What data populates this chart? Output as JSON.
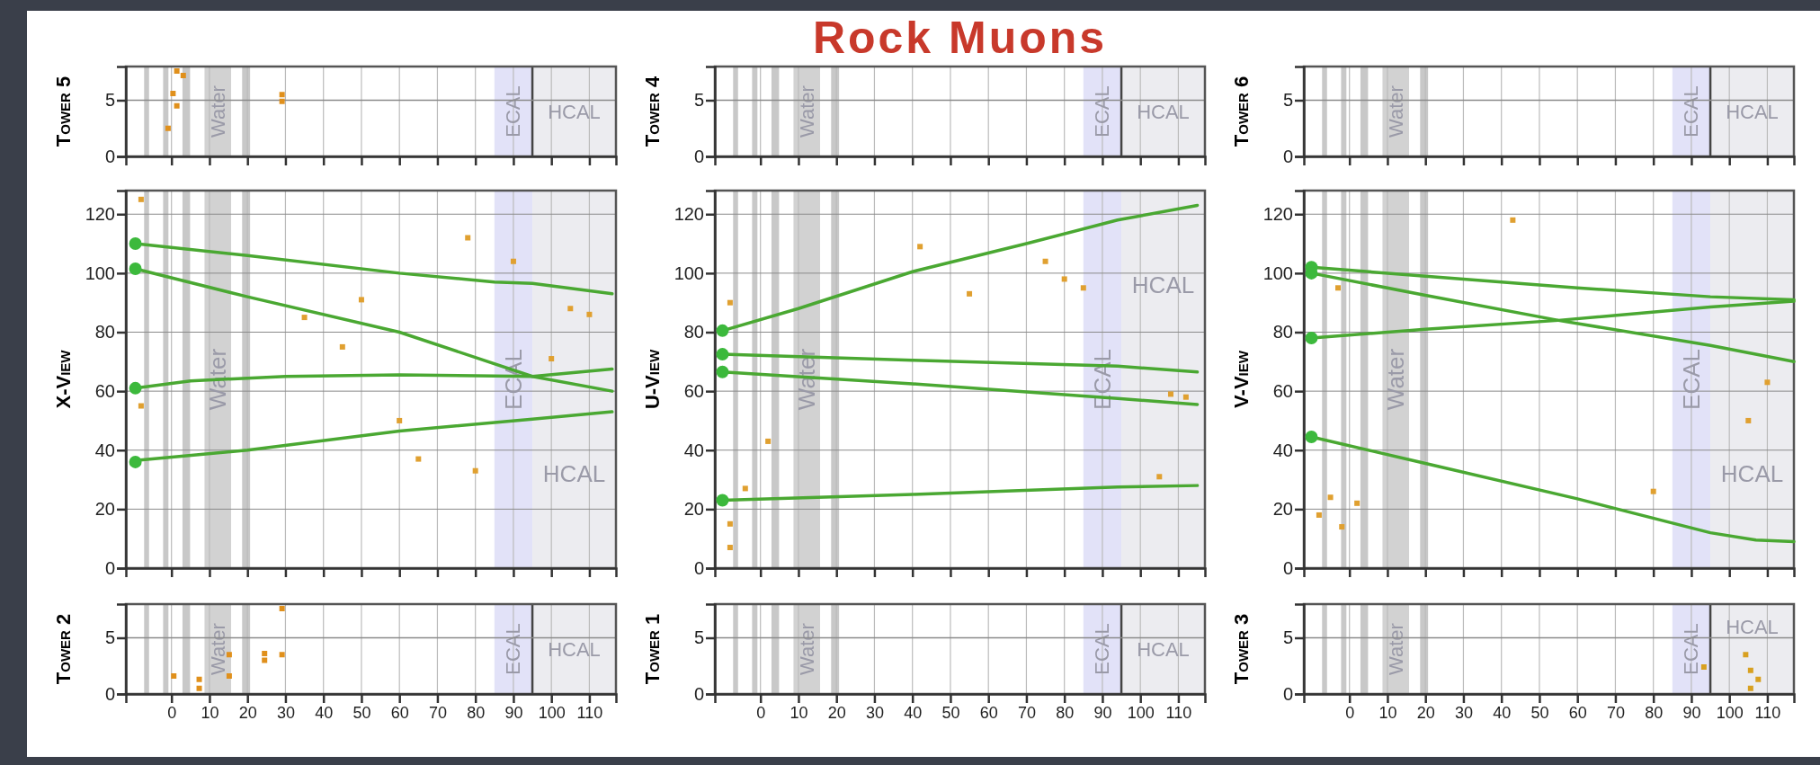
{
  "chart_data": [
    {
      "type": "scatter",
      "ylabel": "Tower 5",
      "xlim": [
        -12,
        117
      ],
      "ylim": [
        0,
        8
      ],
      "xticks": [
        0,
        10,
        20,
        30,
        40,
        50,
        60,
        70,
        80,
        90,
        100,
        110
      ],
      "yticks": [
        0,
        5
      ],
      "tick_labels": "y",
      "grid": "x",
      "ref_lines": [
        {
          "axis": "x",
          "value": 95,
          "color": "#444444"
        },
        {
          "axis": "y",
          "value": 5,
          "color": "#8a8a8a"
        }
      ],
      "bands": [
        {
          "axis": "x",
          "from": -7.2,
          "to": -5.9,
          "color": "#c8c8c8"
        },
        {
          "axis": "x",
          "from": -2.2,
          "to": -0.8,
          "color": "#c8c8c8"
        },
        {
          "axis": "x",
          "from": 2.9,
          "to": 4.9,
          "color": "#c8c8c8"
        },
        {
          "axis": "x",
          "from": 18.6,
          "to": 20.7,
          "color": "#c8c8c8"
        },
        {
          "axis": "x",
          "from": 8.7,
          "to": 15.7,
          "label": "Water",
          "color": "#d2d2d2"
        },
        {
          "axis": "x",
          "from": 85,
          "to": 95,
          "label": "ECAL",
          "color": "#e2e2f8"
        },
        {
          "axis": "x",
          "from": 95,
          "to": 117,
          "label": "HCAL",
          "color": "#ececf0"
        }
      ],
      "series": [
        {
          "color": "#e0901c",
          "marker": "square",
          "x": [
            -0.9,
            0.4,
            1.4,
            1.4,
            3.1,
            29.1,
            29.1
          ],
          "values": [
            2.5,
            5.6,
            4.5,
            7.6,
            7.2,
            4.9,
            5.5
          ]
        }
      ]
    },
    {
      "type": "scatter",
      "title": "Rock Muons",
      "ylabel": "Tower 4",
      "xlim": [
        -12,
        117
      ],
      "ylim": [
        0,
        8
      ],
      "xticks": [
        0,
        10,
        20,
        30,
        40,
        50,
        60,
        70,
        80,
        90,
        100,
        110
      ],
      "yticks": [
        0,
        5
      ],
      "tick_labels": "y",
      "grid": "x",
      "bands": [
        {
          "axis": "x",
          "from": -7.2,
          "to": -5.9,
          "color": "#c8c8c8"
        },
        {
          "axis": "x",
          "from": -2.2,
          "to": -0.8,
          "color": "#c8c8c8"
        },
        {
          "axis": "x",
          "from": 2.9,
          "to": 4.9,
          "color": "#c8c8c8"
        },
        {
          "axis": "x",
          "from": 18.6,
          "to": 20.7,
          "color": "#c8c8c8"
        },
        {
          "axis": "x",
          "from": 8.7,
          "to": 15.7,
          "label": "Water",
          "color": "#d2d2d2"
        },
        {
          "axis": "x",
          "from": 85,
          "to": 95,
          "label": "ECAL",
          "color": "#e2e2f8"
        },
        {
          "axis": "x",
          "from": 95,
          "to": 117,
          "label": "HCAL",
          "color": "#ececf0"
        }
      ],
      "ref_lines": [
        {
          "axis": "x",
          "value": 95,
          "color": "#444444"
        },
        {
          "axis": "y",
          "value": 5,
          "color": "#8a8a8a"
        }
      ]
    },
    {
      "type": "scatter",
      "ylabel": "Tower 6",
      "xlim": [
        -12,
        117
      ],
      "ylim": [
        0,
        8
      ],
      "xticks": [
        0,
        10,
        20,
        30,
        40,
        50,
        60,
        70,
        80,
        90,
        100,
        110
      ],
      "yticks": [
        0,
        5
      ],
      "tick_labels": "y",
      "grid": "x",
      "bands": [
        {
          "axis": "x",
          "from": -7.2,
          "to": -5.9,
          "color": "#c8c8c8"
        },
        {
          "axis": "x",
          "from": -2.2,
          "to": -0.8,
          "color": "#c8c8c8"
        },
        {
          "axis": "x",
          "from": 2.9,
          "to": 4.9,
          "color": "#c8c8c8"
        },
        {
          "axis": "x",
          "from": 18.6,
          "to": 20.7,
          "color": "#c8c8c8"
        },
        {
          "axis": "x",
          "from": 8.7,
          "to": 15.7,
          "label": "Water",
          "color": "#d2d2d2"
        },
        {
          "axis": "x",
          "from": 85,
          "to": 95,
          "label": "ECAL",
          "color": "#e2e2f8"
        },
        {
          "axis": "x",
          "from": 95,
          "to": 117,
          "label": "HCAL",
          "color": "#ececf0"
        }
      ],
      "ref_lines": [
        {
          "axis": "x",
          "value": 95,
          "color": "#444444"
        },
        {
          "axis": "y",
          "value": 5,
          "color": "#8a8a8a"
        }
      ]
    },
    {
      "type": "line",
      "ylabel": "X-View",
      "xlim": [
        -12,
        117
      ],
      "ylim": [
        0,
        128
      ],
      "xticks": [
        0,
        10,
        20,
        30,
        40,
        50,
        60,
        70,
        80,
        90,
        100,
        110
      ],
      "yticks": [
        0,
        20,
        40,
        60,
        80,
        100,
        120
      ],
      "tick_labels": "y",
      "grid": true,
      "bands": [
        {
          "axis": "x",
          "from": -7.2,
          "to": -5.9,
          "color": "#c8c8c8"
        },
        {
          "axis": "x",
          "from": -2.2,
          "to": -0.8,
          "color": "#c8c8c8"
        },
        {
          "axis": "x",
          "from": 2.9,
          "to": 4.9,
          "color": "#c8c8c8"
        },
        {
          "axis": "x",
          "from": 18.6,
          "to": 20.7,
          "color": "#c8c8c8"
        },
        {
          "axis": "x",
          "from": 8.7,
          "to": 15.7,
          "label": "Water",
          "color": "#d2d2d2"
        },
        {
          "axis": "x",
          "from": 85,
          "to": 95,
          "label": "ECAL",
          "color": "#e2e2f8"
        },
        {
          "axis": "x",
          "from": 95,
          "to": 117,
          "label": "HCAL",
          "color": "#ececf0"
        }
      ],
      "series": [
        {
          "type": "line",
          "color": "#4aa832",
          "x": [
            -9.5,
            20,
            60,
            85,
            95,
            116
          ],
          "values": [
            110,
            106,
            100,
            97,
            96.5,
            93
          ]
        },
        {
          "type": "line",
          "color": "#4aa832",
          "x": [
            -9.5,
            20,
            60,
            95,
            116
          ],
          "values": [
            101.5,
            92,
            80,
            65,
            60
          ]
        },
        {
          "type": "line",
          "color": "#4aa832",
          "x": [
            -9.5,
            5,
            30,
            60,
            95,
            116
          ],
          "values": [
            61,
            63.5,
            65,
            65.5,
            65,
            67.5
          ]
        },
        {
          "type": "line",
          "color": "#4aa832",
          "x": [
            -9.5,
            20,
            60,
            95,
            116
          ],
          "values": [
            36.5,
            40,
            46.5,
            50.5,
            53
          ]
        },
        {
          "type": "scatter",
          "color": "#3cb93c",
          "marker": "circle",
          "x": [
            -9.5,
            -9.5,
            -9.5,
            -9.5
          ],
          "values": [
            110,
            101.5,
            61,
            36
          ]
        },
        {
          "type": "scatter",
          "color": "#e0a030",
          "marker": "square",
          "x": [
            -8,
            -8,
            35,
            50,
            45,
            60,
            65,
            80,
            78,
            90,
            105,
            110,
            100
          ],
          "values": [
            125,
            55,
            85,
            91,
            75,
            50,
            37,
            33,
            112,
            104,
            88,
            86,
            71
          ]
        }
      ]
    },
    {
      "type": "line",
      "ylabel": "U-View",
      "xlim": [
        -12,
        117
      ],
      "ylim": [
        0,
        128
      ],
      "xticks": [
        0,
        10,
        20,
        30,
        40,
        50,
        60,
        70,
        80,
        90,
        100,
        110
      ],
      "yticks": [
        0,
        20,
        40,
        60,
        80,
        100,
        120
      ],
      "tick_labels": "y",
      "grid": true,
      "bands": [
        {
          "axis": "x",
          "from": -7.2,
          "to": -5.9,
          "color": "#c8c8c8"
        },
        {
          "axis": "x",
          "from": -2.2,
          "to": -0.8,
          "color": "#c8c8c8"
        },
        {
          "axis": "x",
          "from": 2.9,
          "to": 4.9,
          "color": "#c8c8c8"
        },
        {
          "axis": "x",
          "from": 18.6,
          "to": 20.7,
          "color": "#c8c8c8"
        },
        {
          "axis": "x",
          "from": 8.7,
          "to": 15.7,
          "label": "Water",
          "color": "#d2d2d2"
        },
        {
          "axis": "x",
          "from": 85,
          "to": 95,
          "label": "ECAL",
          "color": "#e2e2f8"
        },
        {
          "axis": "x",
          "from": 95,
          "to": 117,
          "label": "HCAL",
          "color": "#ececf0"
        }
      ],
      "series": [
        {
          "type": "line",
          "color": "#4aa832",
          "x": [
            -10,
            10,
            40,
            70,
            94,
            115
          ],
          "values": [
            80.5,
            88,
            100.5,
            110,
            118,
            123
          ]
        },
        {
          "type": "line",
          "color": "#4aa832",
          "x": [
            -10,
            40,
            94,
            115
          ],
          "values": [
            72.5,
            70.5,
            68.5,
            66.5
          ]
        },
        {
          "type": "line",
          "color": "#4aa832",
          "x": [
            -10,
            40,
            94,
            115
          ],
          "values": [
            66.5,
            62.5,
            57.5,
            55.5
          ]
        },
        {
          "type": "line",
          "color": "#4aa832",
          "x": [
            -10,
            40,
            94,
            115
          ],
          "values": [
            23,
            25,
            27.5,
            28
          ]
        },
        {
          "type": "scatter",
          "color": "#3cb93c",
          "marker": "circle",
          "x": [
            -10,
            -10,
            -10,
            -10
          ],
          "values": [
            80.5,
            72.5,
            66.5,
            23
          ]
        },
        {
          "type": "scatter",
          "color": "#e0a030",
          "marker": "square",
          "x": [
            -8,
            -8,
            -8,
            -4,
            2,
            42,
            55,
            75,
            80,
            85,
            105,
            108,
            112
          ],
          "values": [
            15,
            7,
            90,
            27,
            43,
            109,
            93,
            104,
            98,
            95,
            31,
            59,
            58
          ]
        }
      ]
    },
    {
      "type": "line",
      "ylabel": "V-View",
      "xlim": [
        -12,
        117
      ],
      "ylim": [
        0,
        128
      ],
      "xticks": [
        0,
        10,
        20,
        30,
        40,
        50,
        60,
        70,
        80,
        90,
        100,
        110
      ],
      "yticks": [
        0,
        20,
        40,
        60,
        80,
        100,
        120
      ],
      "tick_labels": "y",
      "grid": true,
      "bands": [
        {
          "axis": "x",
          "from": -7.2,
          "to": -5.9,
          "color": "#c8c8c8"
        },
        {
          "axis": "x",
          "from": -2.2,
          "to": -0.8,
          "color": "#c8c8c8"
        },
        {
          "axis": "x",
          "from": 2.9,
          "to": 4.9,
          "color": "#c8c8c8"
        },
        {
          "axis": "x",
          "from": 18.6,
          "to": 20.7,
          "color": "#c8c8c8"
        },
        {
          "axis": "x",
          "from": 8.7,
          "to": 15.7,
          "label": "Water",
          "color": "#d2d2d2"
        },
        {
          "axis": "x",
          "from": 85,
          "to": 95,
          "label": "ECAL",
          "color": "#e2e2f8"
        },
        {
          "axis": "x",
          "from": 95,
          "to": 117,
          "label": "HCAL",
          "color": "#ececf0"
        }
      ],
      "series": [
        {
          "type": "line",
          "color": "#4aa832",
          "x": [
            -10,
            20,
            60,
            95,
            117
          ],
          "values": [
            102,
            99,
            95,
            92,
            91
          ]
        },
        {
          "type": "line",
          "color": "#4aa832",
          "x": [
            -10,
            20,
            55,
            95,
            117
          ],
          "values": [
            100,
            92.5,
            84,
            75.5,
            70
          ]
        },
        {
          "type": "line",
          "color": "#4aa832",
          "x": [
            -10,
            20,
            55,
            95,
            117
          ],
          "values": [
            78,
            81,
            84,
            88.5,
            90.5
          ]
        },
        {
          "type": "line",
          "color": "#4aa832",
          "x": [
            -10,
            20,
            60,
            95,
            107,
            117
          ],
          "values": [
            44.5,
            35.5,
            23.5,
            12,
            9.5,
            9
          ]
        },
        {
          "type": "scatter",
          "color": "#3cb93c",
          "marker": "circle",
          "x": [
            -10,
            -10,
            -10,
            -10
          ],
          "values": [
            102,
            100,
            78,
            44.5
          ]
        },
        {
          "type": "scatter",
          "color": "#e0a030",
          "marker": "square",
          "x": [
            -8,
            -5,
            -2,
            2,
            -3,
            43,
            80,
            105,
            110
          ],
          "values": [
            18,
            24,
            14,
            22,
            95,
            118,
            26,
            50,
            63
          ]
        }
      ]
    },
    {
      "type": "scatter",
      "ylabel": "Tower 2",
      "xlim": [
        -12,
        117
      ],
      "ylim": [
        0,
        8
      ],
      "xticks": [
        0,
        10,
        20,
        30,
        40,
        50,
        60,
        70,
        80,
        90,
        100,
        110
      ],
      "yticks": [
        0,
        5
      ],
      "grid": "x",
      "ref_lines": [
        {
          "axis": "x",
          "value": 95,
          "color": "#444444"
        },
        {
          "axis": "y",
          "value": 5,
          "color": "#8a8a8a"
        }
      ],
      "bands": [
        {
          "axis": "x",
          "from": -7.2,
          "to": -5.9,
          "color": "#c8c8c8"
        },
        {
          "axis": "x",
          "from": -2.2,
          "to": -0.8,
          "color": "#c8c8c8"
        },
        {
          "axis": "x",
          "from": 2.9,
          "to": 4.9,
          "color": "#c8c8c8"
        },
        {
          "axis": "x",
          "from": 18.6,
          "to": 20.7,
          "color": "#c8c8c8"
        },
        {
          "axis": "x",
          "from": 8.7,
          "to": 15.7,
          "label": "Water",
          "color": "#d2d2d2"
        },
        {
          "axis": "x",
          "from": 85,
          "to": 95,
          "label": "ECAL",
          "color": "#e2e2f8"
        },
        {
          "axis": "x",
          "from": 95,
          "to": 117,
          "label": "HCAL",
          "color": "#ececf0"
        }
      ],
      "series": [
        {
          "color": "#e0901c",
          "marker": "square",
          "x": [
            0.6,
            7.3,
            7.3,
            15.2,
            15.2,
            24.5,
            24.5,
            29.1,
            29.1
          ],
          "values": [
            1.6,
            1.3,
            0.5,
            3.5,
            1.6,
            3,
            3.6,
            7.6,
            3.5
          ]
        }
      ]
    },
    {
      "type": "scatter",
      "ylabel": "Tower 1",
      "xlim": [
        -12,
        117
      ],
      "ylim": [
        0,
        8
      ],
      "xticks": [
        0,
        10,
        20,
        30,
        40,
        50,
        60,
        70,
        80,
        90,
        100,
        110
      ],
      "yticks": [
        0,
        5
      ],
      "grid": "x",
      "bands": [
        {
          "axis": "x",
          "from": -7.2,
          "to": -5.9,
          "color": "#c8c8c8"
        },
        {
          "axis": "x",
          "from": -2.2,
          "to": -0.8,
          "color": "#c8c8c8"
        },
        {
          "axis": "x",
          "from": 2.9,
          "to": 4.9,
          "color": "#c8c8c8"
        },
        {
          "axis": "x",
          "from": 18.6,
          "to": 20.7,
          "color": "#c8c8c8"
        },
        {
          "axis": "x",
          "from": 8.7,
          "to": 15.7,
          "label": "Water",
          "color": "#d2d2d2"
        },
        {
          "axis": "x",
          "from": 85,
          "to": 95,
          "label": "ECAL",
          "color": "#e2e2f8"
        },
        {
          "axis": "x",
          "from": 95,
          "to": 117,
          "label": "HCAL",
          "color": "#ececf0"
        }
      ],
      "ref_lines": [
        {
          "axis": "x",
          "value": 95,
          "color": "#444444"
        },
        {
          "axis": "y",
          "value": 5,
          "color": "#8a8a8a"
        }
      ]
    },
    {
      "type": "scatter",
      "ylabel": "Tower 3",
      "xlim": [
        -12,
        117
      ],
      "ylim": [
        0,
        8
      ],
      "xticks": [
        0,
        10,
        20,
        30,
        40,
        50,
        60,
        70,
        80,
        90,
        100,
        110
      ],
      "yticks": [
        0,
        5
      ],
      "grid": "x",
      "ref_lines": [
        {
          "axis": "x",
          "value": 95,
          "color": "#444444"
        },
        {
          "axis": "y",
          "value": 5,
          "color": "#8a8a8a"
        }
      ],
      "bands": [
        {
          "axis": "x",
          "from": -7.2,
          "to": -5.9,
          "color": "#c8c8c8"
        },
        {
          "axis": "x",
          "from": -2.2,
          "to": -0.8,
          "color": "#c8c8c8"
        },
        {
          "axis": "x",
          "from": 2.9,
          "to": 4.9,
          "color": "#c8c8c8"
        },
        {
          "axis": "x",
          "from": 18.6,
          "to": 20.7,
          "color": "#c8c8c8"
        },
        {
          "axis": "x",
          "from": 8.7,
          "to": 15.7,
          "label": "Water",
          "color": "#d2d2d2"
        },
        {
          "axis": "x",
          "from": 85,
          "to": 95,
          "label": "ECAL",
          "color": "#e2e2f8"
        },
        {
          "axis": "x",
          "from": 95,
          "to": 117,
          "label": "HCAL",
          "color": "#ececf0"
        }
      ],
      "series": [
        {
          "color": "#d8a020",
          "marker": "square",
          "x": [
            93.3,
            104.3,
            105.6,
            105.6,
            107.6
          ],
          "values": [
            2.4,
            3.5,
            2.1,
            0.5,
            1.3
          ]
        }
      ]
    }
  ]
}
